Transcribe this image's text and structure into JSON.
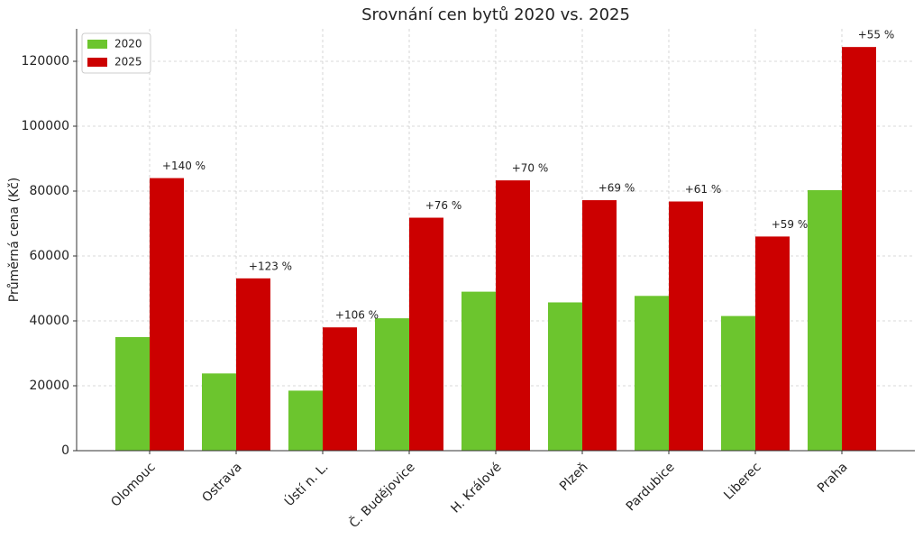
{
  "chart_data": {
    "type": "bar",
    "title": "Srovnání cen bytů 2020 vs. 2025",
    "y_label": "Průměrná cena (Kč)",
    "categories": [
      "Olomouc",
      "Ostrava",
      "Ústí n. L.",
      "Č. Budějovice",
      "H. Králové",
      "Plzeň",
      "Pardubice",
      "Liberec",
      "Praha"
    ],
    "series": [
      {
        "name": "2020",
        "color": "#6cc52e",
        "values": [
          35000,
          23800,
          18500,
          40800,
          49000,
          45700,
          47700,
          41500,
          80300
        ]
      },
      {
        "name": "2025",
        "color": "#cc0000",
        "values": [
          84000,
          53100,
          38000,
          71800,
          83300,
          77200,
          76800,
          66000,
          124400
        ]
      }
    ],
    "annotations": [
      "+140 %",
      "+123 %",
      "+106 %",
      "+76 %",
      "+70 %",
      "+69 %",
      "+61 %",
      "+59 %",
      "+55 %"
    ],
    "ylim": [
      0,
      130000
    ],
    "yticks": [
      0,
      20000,
      40000,
      60000,
      80000,
      100000,
      120000
    ],
    "grid": true,
    "legend": "upper-left"
  }
}
